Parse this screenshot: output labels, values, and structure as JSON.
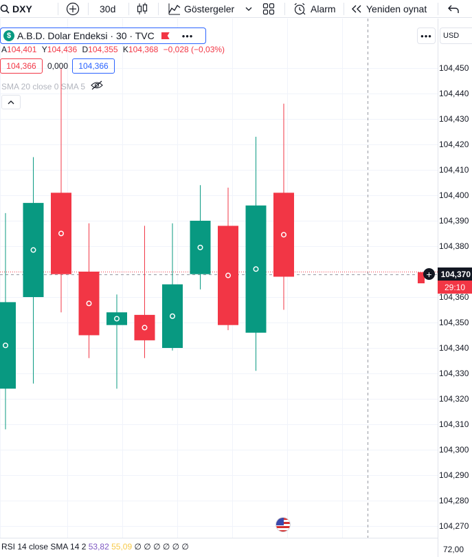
{
  "toolbar": {
    "symbol": "DXY",
    "interval": "30d",
    "indicators_label": "Göstergeler",
    "alarm_label": "Alarm",
    "replay_label": "Yeniden oynat"
  },
  "legend": {
    "title": "A.B.D. Dolar Endeksi · 30 · TVC",
    "symbol_badge": "$",
    "more": "•••",
    "ohlc": {
      "a_key": "A",
      "a_val": "104,401",
      "y_key": "Y",
      "y_val": "104,436",
      "d_key": "D",
      "d_val": "104,355",
      "k_key": "K",
      "k_val": "104,368",
      "change": "−0,028 (−0,03%)"
    },
    "sell_price": "104,366",
    "spread": "0,000",
    "buy_price": "104,366",
    "sma_label": "SMA 20 close 0 SMA 5"
  },
  "scale": {
    "currency": "USD",
    "more": "•••",
    "labels": [
      "104,450",
      "104,440",
      "104,430",
      "104,420",
      "104,410",
      "104,400",
      "104,390",
      "104,380",
      "104,360",
      "104,350",
      "104,340",
      "104,330",
      "104,320",
      "104,310",
      "104,300",
      "104,290",
      "104,280",
      "104,270"
    ],
    "current_price": "104,370",
    "countdown": "29:10"
  },
  "chart_data": {
    "type": "candlestick",
    "ylim": [
      104.266,
      104.461
    ],
    "y_ticks": [
      104.45,
      104.44,
      104.43,
      104.42,
      104.41,
      104.4,
      104.39,
      104.38,
      104.36,
      104.35,
      104.34,
      104.33,
      104.32,
      104.31,
      104.3,
      104.29,
      104.28,
      104.27
    ],
    "current_price": 104.37,
    "candles": [
      {
        "o": 104.324,
        "h": 104.393,
        "l": 104.308,
        "c": 104.358,
        "dir": "up"
      },
      {
        "o": 104.36,
        "h": 104.415,
        "l": 104.326,
        "c": 104.397,
        "dir": "up"
      },
      {
        "o": 104.401,
        "h": 104.45,
        "l": 104.354,
        "c": 104.369,
        "dir": "down"
      },
      {
        "o": 104.37,
        "h": 104.389,
        "l": 104.336,
        "c": 104.345,
        "dir": "down"
      },
      {
        "o": 104.349,
        "h": 104.361,
        "l": 104.324,
        "c": 104.354,
        "dir": "up"
      },
      {
        "o": 104.353,
        "h": 104.388,
        "l": 104.336,
        "c": 104.343,
        "dir": "down"
      },
      {
        "o": 104.34,
        "h": 104.389,
        "l": 104.339,
        "c": 104.365,
        "dir": "up"
      },
      {
        "o": 104.369,
        "h": 104.404,
        "l": 104.363,
        "c": 104.39,
        "dir": "up"
      },
      {
        "o": 104.388,
        "h": 104.403,
        "l": 104.347,
        "c": 104.349,
        "dir": "down"
      },
      {
        "o": 104.346,
        "h": 104.423,
        "l": 104.331,
        "c": 104.396,
        "dir": "up"
      },
      {
        "o": 104.401,
        "h": 104.436,
        "l": 104.355,
        "c": 104.368,
        "dir": "down"
      }
    ],
    "colors": {
      "up": "#089981",
      "down": "#f23645"
    }
  },
  "rsi": {
    "label": "RSI 14 close SMA 14 2",
    "value1": "53,82",
    "value2": "55,09",
    "zeros": "∅ ∅ ∅ ∅ ∅ ∅",
    "scale_value": "72,00"
  }
}
